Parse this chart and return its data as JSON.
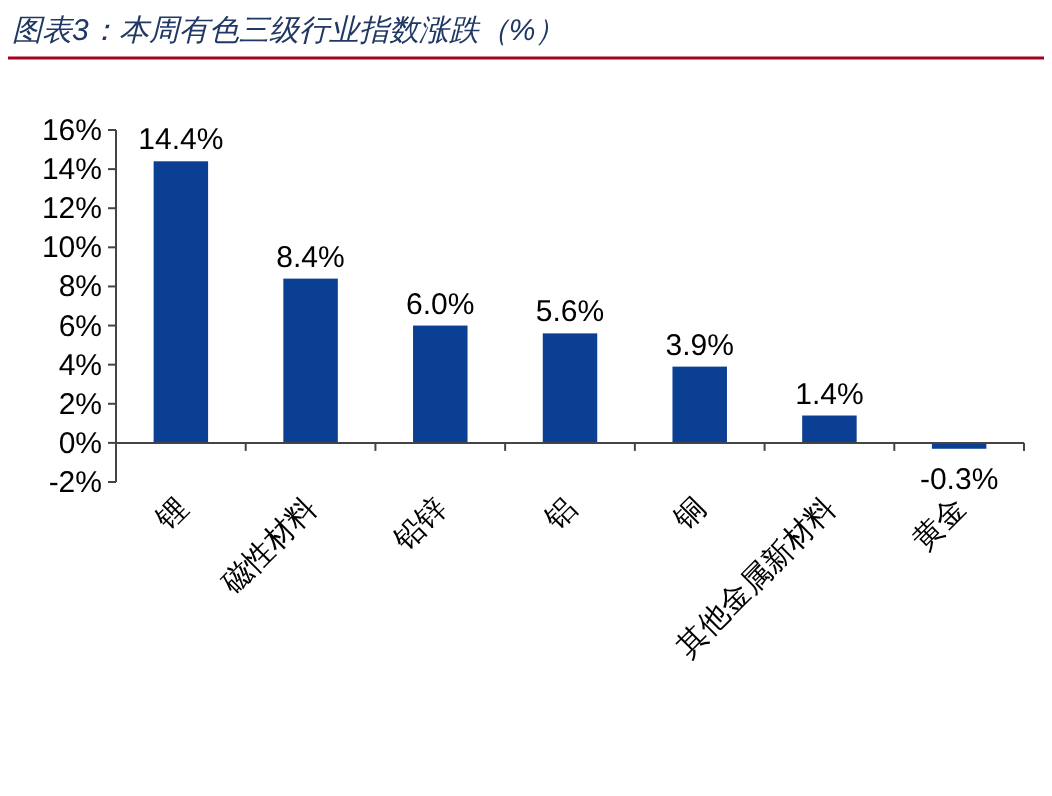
{
  "chart_data": {
    "type": "bar",
    "title": "图表3：本周有色三级行业指数涨跌（%）",
    "categories": [
      "锂",
      "磁性材料",
      "铅锌",
      "铝",
      "铜",
      "其他金属新材料",
      "黄金"
    ],
    "values": [
      14.4,
      8.4,
      6.0,
      5.6,
      3.9,
      1.4,
      -0.3
    ],
    "value_labels": [
      "14.4%",
      "8.4%",
      "6.0%",
      "5.6%",
      "3.9%",
      "1.4%",
      "-0.3%"
    ],
    "color": "#0b3f94",
    "data_labels": true,
    "ylim": [
      -2,
      16
    ],
    "yticks": [
      {
        "value": -2,
        "label": "-2%"
      },
      {
        "value": 0,
        "label": "0%"
      },
      {
        "value": 2,
        "label": "2%"
      },
      {
        "value": 4,
        "label": "4%"
      },
      {
        "value": 6,
        "label": "6%"
      },
      {
        "value": 8,
        "label": "8%"
      },
      {
        "value": 10,
        "label": "10%"
      },
      {
        "value": 12,
        "label": "12%"
      },
      {
        "value": 14,
        "label": "14%"
      },
      {
        "value": 16,
        "label": "16%"
      }
    ],
    "grid": false
  }
}
